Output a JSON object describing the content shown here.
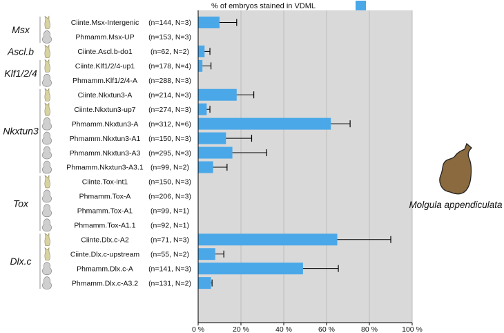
{
  "chart_data": {
    "type": "bar",
    "orientation": "horizontal",
    "title": "",
    "legend": [
      {
        "label": "% of embryos stained in VDML",
        "color": "#4aa8e8"
      }
    ],
    "legend_position": "top",
    "xlim": [
      0,
      100
    ],
    "xticks": [
      0,
      20,
      40,
      60,
      80,
      100
    ],
    "xtick_labels": [
      "0 %",
      "20 %",
      "40 %",
      "60 %",
      "80 %",
      "100 %"
    ],
    "grid": true,
    "species_label": "Molgula appendiculata",
    "groups": [
      {
        "gene": "Msx",
        "start": 0,
        "end": 1
      },
      {
        "gene": "Ascl.b",
        "start": 2,
        "end": 2
      },
      {
        "gene": "Klf1/2/4",
        "start": 3,
        "end": 4
      },
      {
        "gene": "Nkxtun3",
        "start": 5,
        "end": 10
      },
      {
        "gene": "Tox",
        "start": 11,
        "end": 14
      },
      {
        "gene": "Dlx.c",
        "start": 15,
        "end": 18
      }
    ],
    "rows": [
      {
        "construct": "Ciinte.Msx-Intergenic",
        "n": "(n=144, N=3)",
        "species": "Ciinte",
        "value": 10,
        "err": 8
      },
      {
        "construct": "Phmamm.Msx-UP",
        "n": "(n=153, N=3)",
        "species": "Phmamm",
        "value": 0,
        "err": 0
      },
      {
        "construct": "Ciinte.Ascl.b-do1",
        "n": "(n=62, N=2)",
        "species": "Ciinte",
        "value": 3,
        "err": 2.5
      },
      {
        "construct": "Ciinte.Klf1/2/4-up1",
        "n": "(n=178, N=4)",
        "species": "Ciinte",
        "value": 2,
        "err": 4
      },
      {
        "construct": "Phmamm.Klf1/2/4-A",
        "n": "(n=288, N=3)",
        "species": "Phmamm",
        "value": 0,
        "err": 0
      },
      {
        "construct": "Ciinte.Nkxtun3-A",
        "n": "(n=214, N=3)",
        "species": "Ciinte",
        "value": 18,
        "err": 8
      },
      {
        "construct": "Ciinte.Nkxtun3-up7",
        "n": "(n=274, N=3)",
        "species": "Ciinte",
        "value": 4,
        "err": 1.5
      },
      {
        "construct": "Phmamm.Nkxtun3-A",
        "n": "(n=312, N=6)",
        "species": "Phmamm",
        "value": 62,
        "err": 9
      },
      {
        "construct": "Phmamm.Nkxtun3-A1",
        "n": "(n=150, N=3)",
        "species": "Phmamm",
        "value": 13,
        "err": 12
      },
      {
        "construct": "Phmamm.Nkxtun3-A3",
        "n": "(n=295, N=3)",
        "species": "Phmamm",
        "value": 16,
        "err": 16
      },
      {
        "construct": "Phmamm.Nkxtun3-A3.1",
        "n": "(n=99, N=2)",
        "species": "Phmamm",
        "value": 7,
        "err": 6.5
      },
      {
        "construct": "Ciinte.Tox-int1",
        "n": "(n=150, N=3)",
        "species": "Ciinte",
        "value": 0,
        "err": 0
      },
      {
        "construct": "Phmamm.Tox-A",
        "n": "(n=206, N=3)",
        "species": "Phmamm",
        "value": 0,
        "err": 0
      },
      {
        "construct": "Phmamm.Tox-A1",
        "n": "(n=99, N=1)",
        "species": "Phmamm",
        "value": 0,
        "err": 0
      },
      {
        "construct": "Phmamm.Tox-A1.1",
        "n": "(n=92, N=1)",
        "species": "Phmamm",
        "value": 0,
        "err": 0
      },
      {
        "construct": "Ciinte.Dlx.c-A2",
        "n": "(n=71, N=3)",
        "species": "Ciinte",
        "value": 65,
        "err": 25
      },
      {
        "construct": "Ciinte.Dlx.c-upstream",
        "n": "(n=55, N=2)",
        "species": "Ciinte",
        "value": 8,
        "err": 4
      },
      {
        "construct": "Phmamm.Dlx.c-A",
        "n": "(n=141, N=3)",
        "species": "Phmamm",
        "value": 49,
        "err": 16.5
      },
      {
        "construct": "Phmamm.Dlx.c-A3.2",
        "n": "(n=131, N=2)",
        "species": "Phmamm",
        "value": 6,
        "err": 0.5
      }
    ],
    "colors": {
      "bar": "#4aa8e8",
      "plot_bg": "#d9d9d9",
      "grid": "#bdbdbd",
      "ciinte_icon": "#d8d3a0",
      "phmamm_icon": "#cfcfcf",
      "molgula": "#8a6a3e"
    }
  }
}
